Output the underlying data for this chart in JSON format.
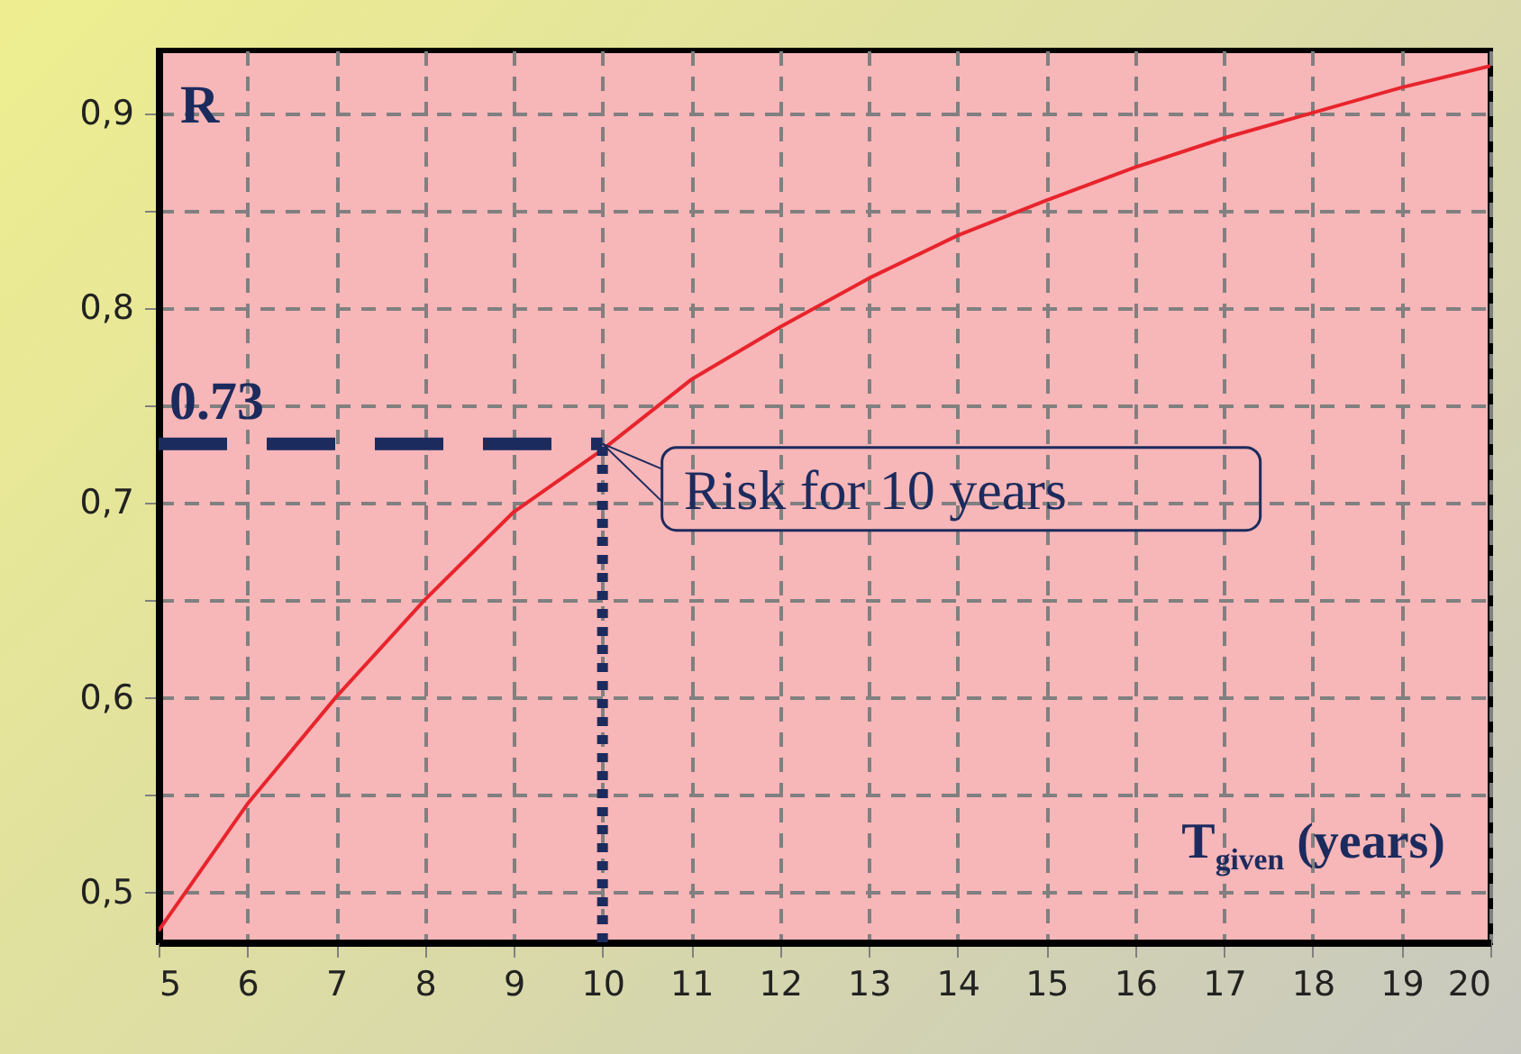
{
  "chart_data": {
    "type": "line",
    "xlabel": "T$_{given}$ (years)",
    "ylabel": "R",
    "x": [
      5,
      6,
      7,
      8,
      9,
      10,
      11,
      12,
      13,
      14,
      15,
      16,
      17,
      18,
      19,
      20
    ],
    "series": [
      {
        "color": "#e8242c",
        "values": [
          0.48,
          0.545,
          0.6,
          0.65,
          0.695,
          0.727,
          0.763,
          0.79,
          0.815,
          0.837,
          0.855,
          0.872,
          0.887,
          0.9,
          0.913,
          0.924
        ]
      }
    ],
    "xlim": [
      5,
      20
    ],
    "ylim": [
      0.474,
      0.932
    ],
    "xticks": [
      5,
      6,
      7,
      8,
      9,
      10,
      11,
      12,
      13,
      14,
      15,
      16,
      17,
      18,
      19,
      20
    ],
    "yticks": [
      {
        "value": 0.5,
        "label": "0,5"
      },
      {
        "value": 0.55,
        "label": null
      },
      {
        "value": 0.6,
        "label": "0,6"
      },
      {
        "value": 0.65,
        "label": null
      },
      {
        "value": 0.7,
        "label": "0,7"
      },
      {
        "value": 0.75,
        "label": null
      },
      {
        "value": 0.8,
        "label": "0,8"
      },
      {
        "value": 0.85,
        "label": null
      },
      {
        "value": 0.9,
        "label": "0,9"
      }
    ],
    "grid": true,
    "line_style": "solid",
    "marker": "none",
    "ref_lines": [
      {
        "axis": "y",
        "value": 0.73,
        "label": "0.73",
        "line_style": "dashed",
        "color": "#1c2b5e"
      },
      {
        "axis": "x",
        "value": 10,
        "line_style": "dotted",
        "color": "#1c2b5e"
      }
    ],
    "annotations": [
      {
        "text": "Risk for 10 years",
        "x": 10,
        "y": 0.73
      }
    ]
  }
}
